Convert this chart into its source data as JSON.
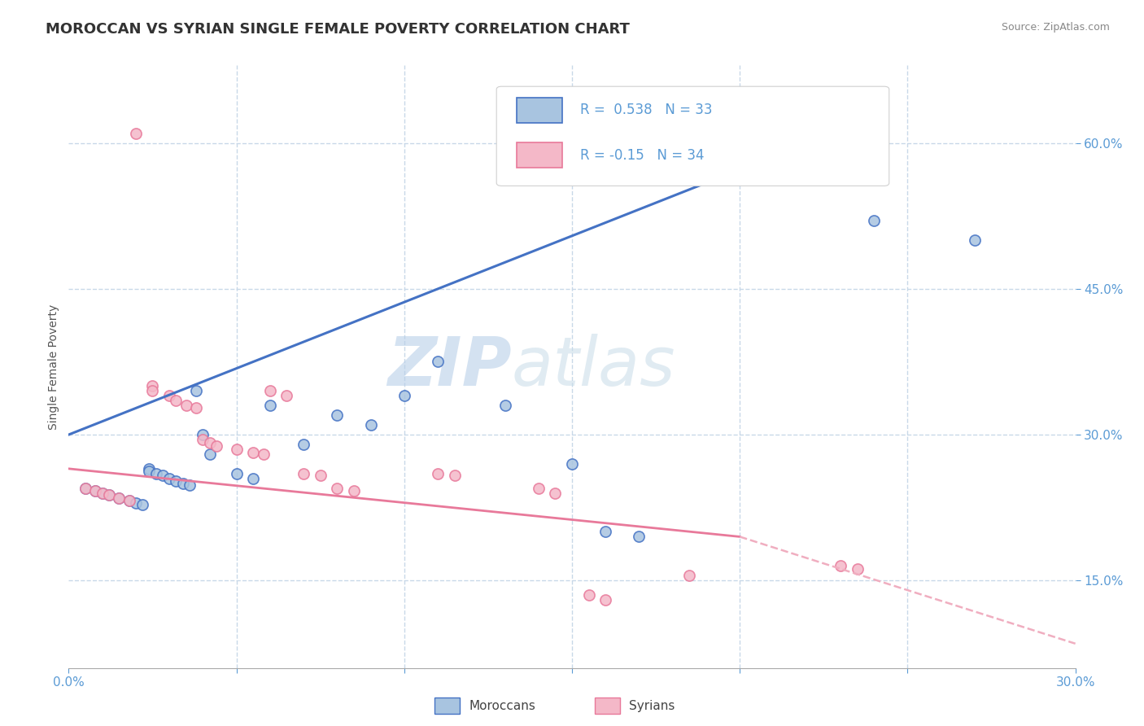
{
  "title": "MOROCCAN VS SYRIAN SINGLE FEMALE POVERTY CORRELATION CHART",
  "source": "Source: ZipAtlas.com",
  "ylabel": "Single Female Poverty",
  "xlim": [
    0.0,
    0.3
  ],
  "ylim": [
    0.06,
    0.68
  ],
  "xticks": [
    0.0,
    0.05,
    0.1,
    0.15,
    0.2,
    0.25,
    0.3
  ],
  "xticklabels": [
    "0.0%",
    "",
    "",
    "",
    "",
    "",
    "30.0%"
  ],
  "yticks_right": [
    0.15,
    0.3,
    0.45,
    0.6
  ],
  "ytick_labels_right": [
    "15.0%",
    "30.0%",
    "45.0%",
    "60.0%"
  ],
  "moroccan_R": 0.538,
  "moroccan_N": 33,
  "syrian_R": -0.15,
  "syrian_N": 34,
  "moroccan_color": "#a8c4e0",
  "syrian_color": "#f4b8c8",
  "moroccan_line_color": "#4472c4",
  "syrian_line_color_solid": "#e8799a",
  "syrian_line_color_dash": "#f0aec0",
  "moroccan_scatter": [
    [
      0.005,
      0.245
    ],
    [
      0.008,
      0.242
    ],
    [
      0.01,
      0.24
    ],
    [
      0.012,
      0.238
    ],
    [
      0.015,
      0.235
    ],
    [
      0.018,
      0.232
    ],
    [
      0.02,
      0.23
    ],
    [
      0.022,
      0.228
    ],
    [
      0.024,
      0.265
    ],
    [
      0.024,
      0.262
    ],
    [
      0.026,
      0.26
    ],
    [
      0.028,
      0.258
    ],
    [
      0.03,
      0.255
    ],
    [
      0.032,
      0.252
    ],
    [
      0.034,
      0.25
    ],
    [
      0.036,
      0.248
    ],
    [
      0.038,
      0.345
    ],
    [
      0.04,
      0.3
    ],
    [
      0.042,
      0.28
    ],
    [
      0.05,
      0.26
    ],
    [
      0.055,
      0.255
    ],
    [
      0.06,
      0.33
    ],
    [
      0.07,
      0.29
    ],
    [
      0.08,
      0.32
    ],
    [
      0.09,
      0.31
    ],
    [
      0.1,
      0.34
    ],
    [
      0.11,
      0.375
    ],
    [
      0.13,
      0.33
    ],
    [
      0.15,
      0.27
    ],
    [
      0.16,
      0.2
    ],
    [
      0.17,
      0.195
    ],
    [
      0.24,
      0.52
    ],
    [
      0.27,
      0.5
    ]
  ],
  "syrian_scatter": [
    [
      0.005,
      0.245
    ],
    [
      0.008,
      0.242
    ],
    [
      0.01,
      0.24
    ],
    [
      0.012,
      0.238
    ],
    [
      0.015,
      0.235
    ],
    [
      0.018,
      0.232
    ],
    [
      0.02,
      0.61
    ],
    [
      0.025,
      0.35
    ],
    [
      0.025,
      0.345
    ],
    [
      0.03,
      0.34
    ],
    [
      0.032,
      0.335
    ],
    [
      0.035,
      0.33
    ],
    [
      0.038,
      0.328
    ],
    [
      0.04,
      0.295
    ],
    [
      0.042,
      0.292
    ],
    [
      0.044,
      0.288
    ],
    [
      0.05,
      0.285
    ],
    [
      0.055,
      0.282
    ],
    [
      0.058,
      0.28
    ],
    [
      0.06,
      0.345
    ],
    [
      0.065,
      0.34
    ],
    [
      0.07,
      0.26
    ],
    [
      0.075,
      0.258
    ],
    [
      0.08,
      0.245
    ],
    [
      0.085,
      0.242
    ],
    [
      0.11,
      0.26
    ],
    [
      0.115,
      0.258
    ],
    [
      0.14,
      0.245
    ],
    [
      0.145,
      0.24
    ],
    [
      0.155,
      0.135
    ],
    [
      0.16,
      0.13
    ],
    [
      0.185,
      0.155
    ],
    [
      0.23,
      0.165
    ],
    [
      0.235,
      0.162
    ]
  ],
  "watermark_zip": "ZIP",
  "watermark_atlas": "atlas",
  "background_color": "#ffffff",
  "grid_color": "#c8d8e8",
  "title_fontsize": 13,
  "axis_label_fontsize": 10,
  "tick_fontsize": 11,
  "legend_fontsize": 12,
  "moroccan_line_endpoints": [
    0.0,
    0.3,
    0.22,
    0.6
  ],
  "syrian_line_solid_endpoints": [
    0.0,
    0.265,
    0.2,
    0.195
  ],
  "syrian_line_dash_endpoints": [
    0.2,
    0.195,
    0.3,
    0.085
  ]
}
